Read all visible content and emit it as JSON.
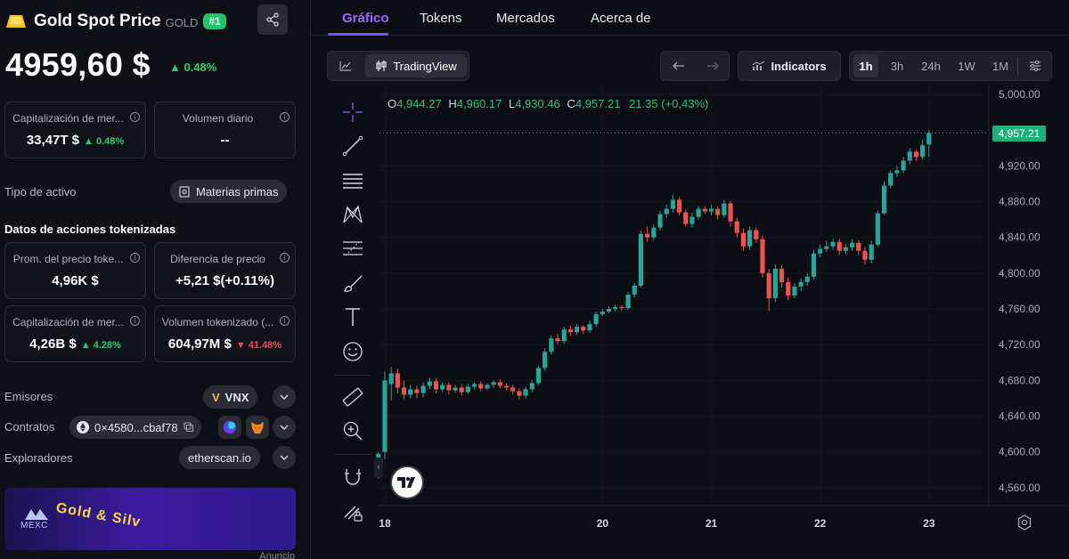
{
  "asset": {
    "name": "Gold Spot Price",
    "ticker": "GOLD",
    "rank": "#1",
    "price": "4959,60 $",
    "change": "0.48%"
  },
  "stats": {
    "market_cap_label": "Capitalización de mer...",
    "market_cap_value": "33,47T $",
    "market_cap_change": "0.48%",
    "daily_volume_label": "Volumen diario",
    "daily_volume_value": "--"
  },
  "asset_type": {
    "label": "Tipo de activo",
    "value": "Materias primas"
  },
  "tokenized": {
    "title": "Datos de acciones tokenizadas",
    "avg_price_label": "Prom. del precio toke...",
    "avg_price_value": "4,96K $",
    "price_diff_label": "Diferencia de precio",
    "price_diff_value": "+5,21 $(+0.11%)",
    "market_cap_label": "Capitalización de mer...",
    "market_cap_value": "4,26B $",
    "market_cap_change": "4.28%",
    "volume_label": "Volumen tokenizado (...",
    "volume_value": "604,97M $",
    "volume_change": "41.48%"
  },
  "issuers": {
    "label": "Emisores",
    "value": "VNX"
  },
  "contracts": {
    "label": "Contratos",
    "address": "0×4580...cbaf78"
  },
  "explorers": {
    "label": "Exploradores",
    "value": "etherscan.io"
  },
  "ad": {
    "brand": "MEXC",
    "headline": "Gold & Silv",
    "label": "Anuncio"
  },
  "tabs": [
    "Gráfico",
    "Tokens",
    "Mercados",
    "Acerca de"
  ],
  "toolbar": {
    "tradingview": "TradingView",
    "indicators": "Indicators",
    "intervals": [
      "1h",
      "3h",
      "24h",
      "1W",
      "1M"
    ],
    "selected_interval": "1h"
  },
  "ohlc": {
    "o_label": "O",
    "o": "4,944.27",
    "h_label": "H",
    "h": "4,960.17",
    "l_label": "L",
    "l": "4,930.46",
    "c_label": "C",
    "c": "4,957.21",
    "change": "21.35 (+0,43%)"
  },
  "last_price_tag": "4,957.21",
  "colors": {
    "up": "#26a69a",
    "down": "#ef5350",
    "accent": "#7b4dff",
    "positive": "#2ecc71",
    "negative": "#f0455a"
  },
  "chart_data": {
    "type": "candlestick",
    "y_ticks": [
      "5,000.00",
      "4,960.00",
      "4,920.00",
      "4,880.00",
      "4,840.00",
      "4,800.00",
      "4,760.00",
      "4,720.00",
      "4,680.00",
      "4,640.00",
      "4,600.00",
      "4,560.00"
    ],
    "ylim": [
      4540,
      5010
    ],
    "x_ticks": [
      "18",
      "20",
      "21",
      "22",
      "23"
    ],
    "x_tick_positions": [
      18,
      20,
      21,
      22,
      23
    ],
    "xlim": [
      17.95,
      23.55
    ],
    "candles": [
      [
        4592,
        4598,
        4570,
        4600
      ],
      [
        4600,
        4680,
        4592,
        4690
      ],
      [
        4676,
        4688,
        4658,
        4695
      ],
      [
        4688,
        4672,
        4666,
        4693
      ],
      [
        4672,
        4664,
        4659,
        4680
      ],
      [
        4664,
        4670,
        4660,
        4675
      ],
      [
        4670,
        4666,
        4660,
        4674
      ],
      [
        4666,
        4674,
        4661,
        4678
      ],
      [
        4674,
        4679,
        4670,
        4683
      ],
      [
        4679,
        4670,
        4666,
        4682
      ],
      [
        4670,
        4675,
        4667,
        4678
      ],
      [
        4675,
        4669,
        4664,
        4678
      ],
      [
        4669,
        4672,
        4666,
        4675
      ],
      [
        4672,
        4667,
        4663,
        4676
      ],
      [
        4667,
        4673,
        4665,
        4676
      ],
      [
        4673,
        4676,
        4670,
        4678
      ],
      [
        4676,
        4671,
        4668,
        4679
      ],
      [
        4671,
        4675,
        4669,
        4677
      ],
      [
        4675,
        4678,
        4672,
        4680
      ],
      [
        4678,
        4674,
        4671,
        4681
      ],
      [
        4674,
        4672,
        4669,
        4677
      ],
      [
        4672,
        4668,
        4664,
        4675
      ],
      [
        4668,
        4663,
        4659,
        4671
      ],
      [
        4663,
        4670,
        4660,
        4673
      ],
      [
        4670,
        4677,
        4667,
        4680
      ],
      [
        4677,
        4694,
        4675,
        4697
      ],
      [
        4694,
        4712,
        4691,
        4716
      ],
      [
        4712,
        4727,
        4709,
        4730
      ],
      [
        4727,
        4724,
        4720,
        4732
      ],
      [
        4724,
        4737,
        4721,
        4740
      ],
      [
        4737,
        4734,
        4730,
        4741
      ],
      [
        4734,
        4740,
        4731,
        4743
      ],
      [
        4740,
        4736,
        4732,
        4742
      ],
      [
        4736,
        4743,
        4733,
        4747
      ],
      [
        4743,
        4754,
        4740,
        4757
      ],
      [
        4754,
        4757,
        4752,
        4760
      ],
      [
        4757,
        4760,
        4755,
        4763
      ],
      [
        4760,
        4762,
        4757,
        4765
      ],
      [
        4762,
        4761,
        4758,
        4764
      ],
      [
        4761,
        4776,
        4759,
        4779
      ],
      [
        4776,
        4786,
        4773,
        4789
      ],
      [
        4786,
        4844,
        4784,
        4848
      ],
      [
        4844,
        4840,
        4835,
        4852
      ],
      [
        4840,
        4851,
        4837,
        4855
      ],
      [
        4851,
        4866,
        4848,
        4870
      ],
      [
        4866,
        4872,
        4862,
        4877
      ],
      [
        4872,
        4882,
        4868,
        4888
      ],
      [
        4882,
        4868,
        4865,
        4885
      ],
      [
        4868,
        4855,
        4852,
        4871
      ],
      [
        4855,
        4863,
        4851,
        4868
      ],
      [
        4863,
        4872,
        4860,
        4875
      ],
      [
        4872,
        4869,
        4866,
        4875
      ],
      [
        4869,
        4872,
        4865,
        4876
      ],
      [
        4872,
        4865,
        4860,
        4875
      ],
      [
        4865,
        4878,
        4862,
        4882
      ],
      [
        4878,
        4858,
        4852,
        4881
      ],
      [
        4858,
        4845,
        4840,
        4862
      ],
      [
        4845,
        4830,
        4825,
        4850
      ],
      [
        4830,
        4848,
        4826,
        4852
      ],
      [
        4848,
        4838,
        4834,
        4851
      ],
      [
        4838,
        4800,
        4795,
        4842
      ],
      [
        4800,
        4772,
        4758,
        4805
      ],
      [
        4772,
        4805,
        4768,
        4810
      ],
      [
        4805,
        4790,
        4784,
        4809
      ],
      [
        4790,
        4775,
        4770,
        4795
      ],
      [
        4775,
        4785,
        4772,
        4789
      ],
      [
        4785,
        4790,
        4780,
        4794
      ],
      [
        4790,
        4796,
        4786,
        4800
      ],
      [
        4796,
        4822,
        4793,
        4826
      ],
      [
        4822,
        4827,
        4818,
        4832
      ],
      [
        4827,
        4830,
        4824,
        4836
      ],
      [
        4830,
        4835,
        4826,
        4839
      ],
      [
        4835,
        4825,
        4820,
        4838
      ],
      [
        4825,
        4829,
        4821,
        4833
      ],
      [
        4829,
        4834,
        4825,
        4838
      ],
      [
        4834,
        4825,
        4820,
        4837
      ],
      [
        4825,
        4815,
        4810,
        4829
      ],
      [
        4815,
        4832,
        4811,
        4836
      ],
      [
        4832,
        4867,
        4830,
        4870
      ],
      [
        4867,
        4898,
        4865,
        4903
      ],
      [
        4898,
        4912,
        4895,
        4915
      ],
      [
        4912,
        4915,
        4908,
        4920
      ],
      [
        4915,
        4926,
        4912,
        4930
      ],
      [
        4926,
        4936,
        4922,
        4940
      ],
      [
        4936,
        4930,
        4926,
        4938
      ],
      [
        4930,
        4943,
        4927,
        4949
      ],
      [
        4944,
        4957,
        4930,
        4960
      ]
    ]
  }
}
